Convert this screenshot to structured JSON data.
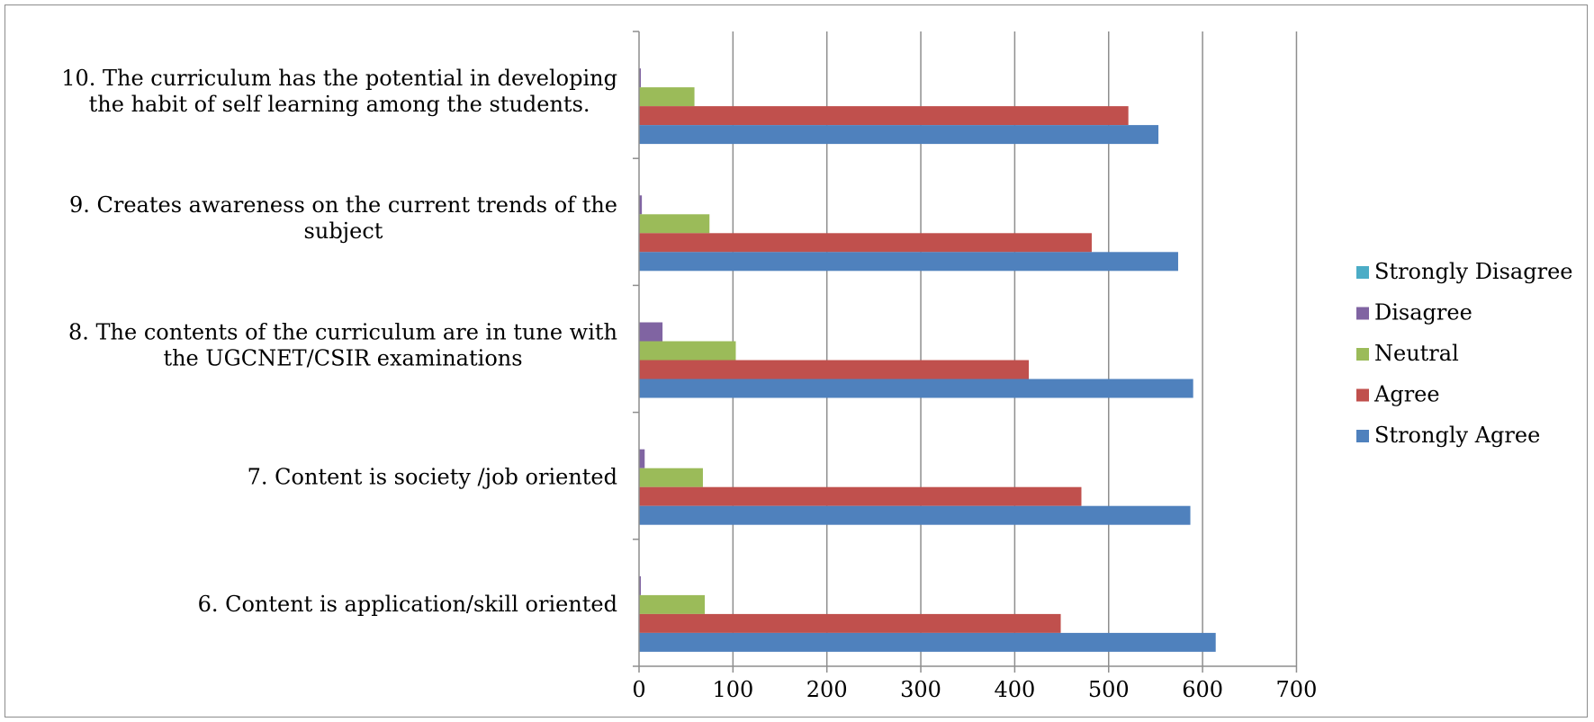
{
  "chart_data": {
    "type": "bar",
    "orientation": "horizontal",
    "title": "",
    "xlabel": "",
    "ylabel": "",
    "xlim": [
      0,
      700
    ],
    "x_ticks": [
      0,
      100,
      200,
      300,
      400,
      500,
      600,
      700
    ],
    "grid": "vertical",
    "legend_position": "right",
    "categories": [
      [
        "10. The curriculum has the potential in developing",
        "the habit of self learning among the students."
      ],
      [
        "9. Creates awareness on the current trends of the",
        "subject"
      ],
      [
        "8. The contents of the curriculum are in tune with",
        "the UGCNET/CSIR examinations"
      ],
      [
        "7. Content is society /job oriented"
      ],
      [
        "6. Content is application/skill oriented"
      ]
    ],
    "series": [
      {
        "name": "Strongly Disagree",
        "color": "#4bacc6",
        "values": [
          0,
          0,
          0,
          0,
          0
        ]
      },
      {
        "name": "Disagree",
        "color": "#8064a2",
        "values": [
          1,
          3,
          25,
          6,
          1
        ]
      },
      {
        "name": "Neutral",
        "color": "#9bbb59",
        "values": [
          59,
          75,
          103,
          68,
          70
        ]
      },
      {
        "name": "Agree",
        "color": "#c0504d",
        "values": [
          521,
          482,
          415,
          471,
          449
        ]
      },
      {
        "name": "Strongly Agree",
        "color": "#4f81bd",
        "values": [
          553,
          574,
          590,
          587,
          614
        ]
      }
    ],
    "legend_order": [
      "Strongly Disagree",
      "Disagree",
      "Neutral",
      "Agree",
      "Strongly Agree"
    ]
  }
}
